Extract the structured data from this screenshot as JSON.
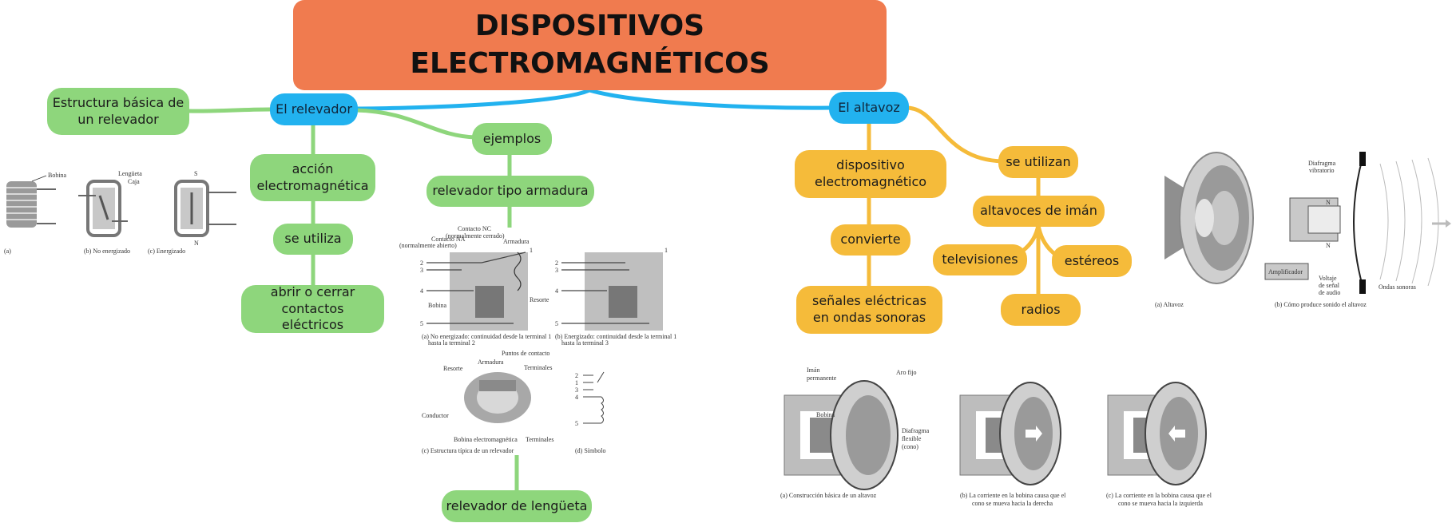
{
  "title": "DISPOSITIVOS ELECTROMAGNÉTICOS",
  "relay": {
    "label": "El relevador",
    "structure": "Estructura básica de un relevador",
    "action": "acción electromagnética",
    "uses_label": "se utiliza",
    "uses_text": "abrir o cerrar contactos eléctricos",
    "examples": "ejemplos",
    "armature_type": "relevador tipo armadura",
    "reed_type": "relevador de lengüeta",
    "fig_basic": {
      "bobina": "Bobina",
      "lengueta": "Lengüeta",
      "caja": "Caja",
      "cap_a": "(a)",
      "cap_b": "(b) No energizado",
      "cap_c": "(c) Energizado"
    },
    "fig_armature": {
      "nc": "Contacto NC",
      "nc2": "(normalmente cerrado)",
      "na": "Contacto NA",
      "na2": "(normalmente abierto)",
      "armadura": "Armadura",
      "resorte": "Resorte",
      "bobina": "Bobina",
      "cap_a1": "(a) No energizado: continuidad desde la terminal 1",
      "cap_a2": "hasta la terminal 2",
      "cap_b1": "(b) Energizado: continuidad desde la terminal 1",
      "cap_b2": "hasta la terminal 3",
      "puntos": "Puntos de contacto",
      "armadura2": "Armadura",
      "resorte2": "Resorte",
      "terminales": "Terminales",
      "conductor": "Conductor",
      "bobina_em": "Bobina electromagnética",
      "terminales2": "Terminales",
      "cap_c": "(c) Estructura típica de un relevador",
      "cap_d": "(d) Símbolo"
    }
  },
  "speaker": {
    "label": "El altavoz",
    "device": "dispositivo electromagnético",
    "converts": "convierte",
    "signals": "señales eléctricas en ondas sonoras",
    "used_in": "se utilizan",
    "magnet_speakers": "altavoces de imán",
    "tv": "televisiones",
    "stereo": "estéreos",
    "radio": "radios",
    "fig_top": {
      "cap_a": "(a)  Altavoz",
      "diafragma": "Diafragma",
      "vibratorio": "vibratorio",
      "amplificador": "Amplificador",
      "voltaje1": "Voltaje",
      "voltaje2": "de señal",
      "voltaje3": "de audio",
      "ondas": "Ondas sonoras",
      "cap_b": "(b)  Cómo produce sonido el altavoz"
    },
    "fig_bottom": {
      "iman1": "Imán",
      "iman2": "permanente",
      "aro": "Aro fijo",
      "bobina": "Bobina",
      "diafragma1": "Diafragma",
      "diafragma2": "flexible",
      "diafragma3": "(cono)",
      "cap_a": "(a)  Construcción básica de un altavoz",
      "cap_b1": "(b)  La corriente en la bobina causa que el",
      "cap_b2": "cono se mueva hacia la derecha",
      "cap_c1": "(c)  La corriente en la bobina causa que el",
      "cap_c2": "cono se mueva hacia la izquierda"
    }
  },
  "colors": {
    "root": "#f07b4f",
    "blue": "#22b2ef",
    "green": "#8ed67c",
    "yellow": "#f5bb3a"
  }
}
